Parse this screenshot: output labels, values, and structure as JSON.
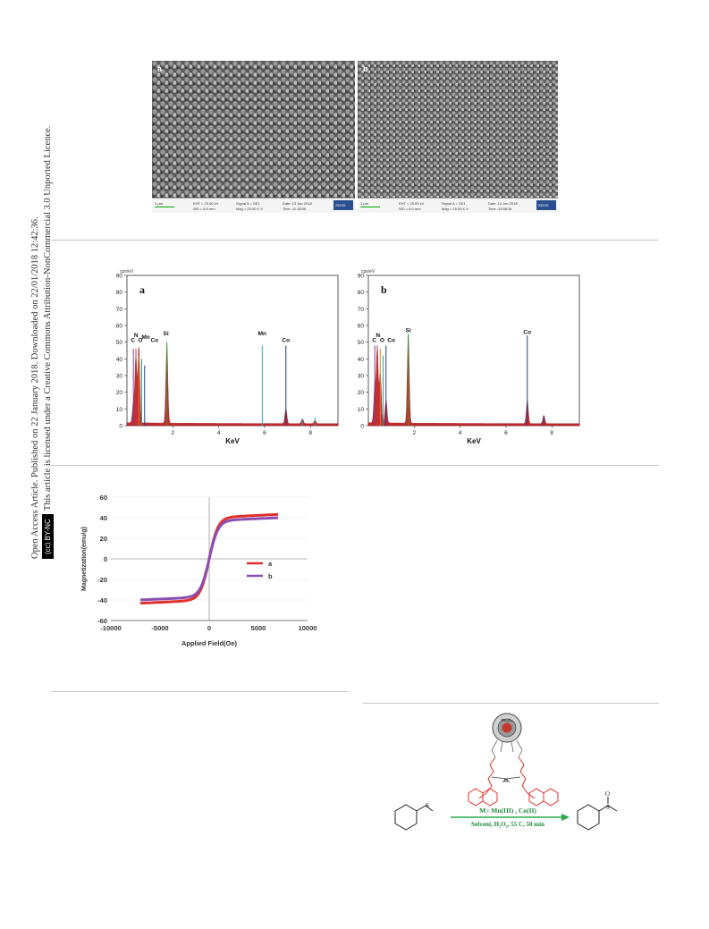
{
  "license": {
    "line1": "Open Access Article. Published on 22 January 2018. Downloaded on 22/01/2018 12:42:36.",
    "badge": "BY-NC",
    "line2": "This article is licensed under a Creative Commons Attribution-NonCommercial 3.0 Unported Licence."
  },
  "sem": [
    {
      "label": "a",
      "scale": "1 μm",
      "eht": "EHT = 25.00 kV",
      "wd": "WD = 8.5 mm",
      "signal": "Signal A = SE1",
      "mag": "Mag = 25.00 K X",
      "date": "Date :13 Jan 2018",
      "time": "Time :11:38:06",
      "logo": "ZEISS"
    },
    {
      "label": "b",
      "scale": "1 μm",
      "eht": "EHT = 25.00 kV",
      "wd": "WD = 8.0 mm",
      "signal": "Signal A = SE1",
      "mag": "Mag = 15.00 K X",
      "date": "Date :13 Jan 2018",
      "time": "Time :15:58:34",
      "logo": "ZEISS"
    }
  ],
  "chart_data": [
    {
      "type": "line",
      "title": "a",
      "ylabel": "cps/eV",
      "xlabel": "KeV",
      "xlim": [
        0,
        9.2
      ],
      "ylim": [
        0,
        90
      ],
      "yticks": [
        0,
        10,
        20,
        30,
        40,
        50,
        60,
        70,
        80,
        90
      ],
      "xticks": [
        2,
        4,
        6,
        8
      ],
      "peaks": [
        {
          "x": 0.28,
          "y": 46,
          "color": "#7b3fa0"
        },
        {
          "x": 0.39,
          "y": 46,
          "color": "#c0392b"
        },
        {
          "x": 0.52,
          "y": 42,
          "color": "#e67e22"
        },
        {
          "x": 0.64,
          "y": 40,
          "color": "#1aa3a3"
        },
        {
          "x": 0.77,
          "y": 36,
          "color": "#1f3f8f"
        },
        {
          "x": 1.74,
          "y": 50,
          "color": "#2d9d2d"
        },
        {
          "x": 5.9,
          "y": 48,
          "color": "#1ab3b3"
        },
        {
          "x": 6.93,
          "y": 48,
          "color": "#1f3f8f"
        },
        {
          "x": 7.65,
          "y": 4,
          "color": "#1ab3b3"
        },
        {
          "x": 8.2,
          "y": 5,
          "color": "#1ab3b3"
        }
      ],
      "fill_peaks": [
        {
          "x": 0.28,
          "y": 12
        },
        {
          "x": 0.39,
          "y": 40
        },
        {
          "x": 0.52,
          "y": 46
        },
        {
          "x": 1.74,
          "y": 48
        },
        {
          "x": 6.93,
          "y": 9
        },
        {
          "x": 7.65,
          "y": 3
        },
        {
          "x": 8.2,
          "y": 2
        }
      ],
      "annotations": [
        {
          "text": "C",
          "x": 0.26,
          "y": 50
        },
        {
          "text": "N",
          "x": 0.4,
          "y": 53
        },
        {
          "text": "O",
          "x": 0.58,
          "y": 50
        },
        {
          "text": "Mn",
          "x": 0.82,
          "y": 52
        },
        {
          "text": "Co",
          "x": 1.2,
          "y": 50
        },
        {
          "text": "Si",
          "x": 1.7,
          "y": 54
        },
        {
          "text": "Mn",
          "x": 5.9,
          "y": 54
        },
        {
          "text": "Co",
          "x": 6.93,
          "y": 50
        }
      ]
    },
    {
      "type": "line",
      "title": "b",
      "ylabel": "cps/eV",
      "xlabel": "KeV",
      "xlim": [
        0,
        9.2
      ],
      "ylim": [
        0,
        90
      ],
      "yticks": [
        0,
        10,
        20,
        30,
        40,
        50,
        60,
        70,
        80,
        90
      ],
      "xticks": [
        2,
        4,
        6,
        8
      ],
      "peaks": [
        {
          "x": 0.28,
          "y": 48,
          "color": "#7b3fa0"
        },
        {
          "x": 0.39,
          "y": 48,
          "color": "#c0392b"
        },
        {
          "x": 0.52,
          "y": 46,
          "color": "#e67e22"
        },
        {
          "x": 0.64,
          "y": 42,
          "color": "#1aa3a3"
        },
        {
          "x": 0.77,
          "y": 48,
          "color": "#1f3f8f"
        },
        {
          "x": 1.74,
          "y": 55,
          "color": "#2d9d2d"
        },
        {
          "x": 6.93,
          "y": 54,
          "color": "#1f3f8f"
        },
        {
          "x": 7.65,
          "y": 6,
          "color": "#1f3f8f"
        }
      ],
      "fill_peaks": [
        {
          "x": 0.28,
          "y": 22
        },
        {
          "x": 0.39,
          "y": 45
        },
        {
          "x": 0.52,
          "y": 30
        },
        {
          "x": 0.77,
          "y": 14
        },
        {
          "x": 1.74,
          "y": 54
        },
        {
          "x": 6.93,
          "y": 14
        },
        {
          "x": 7.65,
          "y": 5
        }
      ],
      "annotations": [
        {
          "text": "C",
          "x": 0.26,
          "y": 50
        },
        {
          "text": "N",
          "x": 0.42,
          "y": 53
        },
        {
          "text": "O",
          "x": 0.6,
          "y": 50
        },
        {
          "text": "Co",
          "x": 1.0,
          "y": 50
        },
        {
          "text": "Si",
          "x": 1.74,
          "y": 56
        },
        {
          "text": "Co",
          "x": 6.93,
          "y": 55
        }
      ]
    },
    {
      "type": "line",
      "xlabel": "Applied Field(Oe)",
      "ylabel": "Magnetization(emu/g)",
      "xlim": [
        -10000,
        10000
      ],
      "ylim": [
        -60,
        60
      ],
      "xticks": [
        -10000,
        -5000,
        0,
        5000,
        10000
      ],
      "yticks": [
        -60,
        -40,
        -20,
        0,
        20,
        40,
        60
      ],
      "series": [
        {
          "name": "a",
          "color": "#e0302a",
          "ms": 40,
          "x_range": [
            -7000,
            7000
          ]
        },
        {
          "name": "b",
          "color": "#8a4fb0",
          "ms": 37,
          "x_range": [
            -7000,
            7000
          ]
        }
      ]
    }
  ],
  "scheme": {
    "core_label": "Fe₃O₄",
    "arrow_top": "M= Mn(III) , Co(II)",
    "arrow_bottom": "Solvent, H₂O₂, 55 C, 50 min",
    "reactant_atom": "S",
    "product_atom_s": "S",
    "product_atom_o": "O",
    "metal": "M"
  }
}
